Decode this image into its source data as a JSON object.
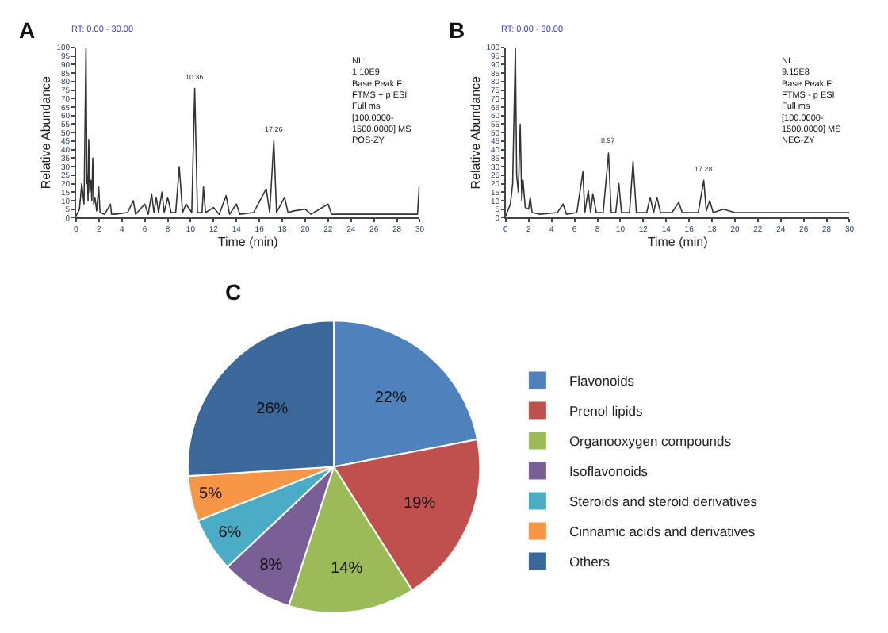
{
  "chart_data": [
    {
      "type": "line",
      "title": "A",
      "subtitle": "RT: 0.00 - 30.00",
      "xlabel": "Time (min)",
      "ylabel": "Relative Abundance",
      "x": [
        0,
        0.3,
        0.5,
        0.7,
        0.87,
        0.95,
        1.0,
        1.05,
        1.11,
        1.2,
        1.3,
        1.38,
        1.46,
        1.55,
        1.65,
        1.8,
        1.98,
        2.1,
        2.5,
        3.0,
        3.1,
        3.4,
        4.5,
        5.0,
        5.2,
        6.0,
        6.3,
        6.6,
        6.8,
        7.0,
        7.2,
        7.5,
        7.7,
        8.0,
        8.3,
        8.7,
        9.01,
        9.3,
        9.6,
        10.1,
        10.36,
        10.6,
        11.0,
        11.12,
        11.3,
        12.0,
        12.5,
        13.1,
        13.4,
        14.0,
        14.3,
        15.5,
        16.6,
        16.9,
        17.26,
        17.5,
        18.2,
        18.5,
        19.0,
        20.0,
        20.5,
        22.0,
        22.3,
        24.0,
        26.0,
        28.0,
        29.8,
        29.95
      ],
      "series": [
        {
          "color": "#333333",
          "values": [
            1,
            5,
            20,
            8,
            100,
            20,
            25,
            10,
            46,
            15,
            22,
            10,
            35,
            8,
            12,
            4,
            18,
            3,
            2,
            8,
            2,
            2,
            3,
            10,
            2,
            8,
            2,
            14,
            3,
            12,
            3,
            15,
            3,
            12,
            3,
            3,
            30,
            3,
            8,
            3,
            76,
            3,
            3,
            18,
            3,
            6,
            2,
            13,
            2,
            8,
            2,
            3,
            17,
            3,
            45,
            3,
            12,
            3,
            4,
            5,
            2,
            8,
            2,
            2,
            2,
            2,
            2,
            19
          ]
        }
      ],
      "xlim": [
        0,
        30
      ],
      "ylim": [
        0,
        100
      ],
      "xticks": [
        0,
        2,
        4,
        6,
        8,
        10,
        12,
        14,
        16,
        18,
        20,
        22,
        24,
        26,
        28,
        30
      ],
      "yticks": [
        0,
        5,
        10,
        15,
        20,
        25,
        30,
        35,
        40,
        45,
        50,
        55,
        60,
        65,
        70,
        75,
        80,
        85,
        90,
        95,
        100
      ],
      "annotations": [
        "NL:\n1.10E9\nBase Peak F:\nFTMS + p ESI\nFull ms\n[100.0000-\n1500.0000] MS\nPOS-ZY",
        {
          "text": "10.36",
          "x": 10.36,
          "y": 76
        },
        {
          "text": "17.26",
          "x": 17.26,
          "y": 45
        }
      ]
    },
    {
      "type": "line",
      "title": "B",
      "subtitle": "RT: 0.00 - 30.00",
      "xlabel": "Time (min)",
      "ylabel": "Relative Abundance",
      "x": [
        0,
        0.4,
        0.6,
        0.84,
        0.95,
        1.1,
        1.26,
        1.4,
        1.5,
        1.7,
        2.0,
        2.13,
        2.3,
        3.0,
        4.5,
        5.0,
        5.3,
        6.2,
        6.73,
        6.9,
        7.2,
        7.4,
        7.6,
        7.9,
        8.5,
        8.97,
        9.2,
        9.6,
        9.87,
        10.1,
        10.8,
        11.11,
        11.4,
        12.3,
        12.6,
        12.9,
        13.2,
        13.5,
        14.5,
        15.1,
        15.4,
        16.8,
        17.28,
        17.5,
        17.8,
        18.1,
        19.0,
        20.0,
        22.0,
        25.0,
        28.0,
        30.0
      ],
      "series": [
        {
          "color": "#333333",
          "values": [
            1,
            8,
            20,
            100,
            25,
            15,
            55,
            10,
            22,
            6,
            5,
            12,
            3,
            2,
            3,
            8,
            2,
            3,
            27,
            3,
            16,
            3,
            14,
            3,
            3,
            38,
            3,
            3,
            20,
            3,
            3,
            33,
            3,
            3,
            12,
            3,
            12,
            3,
            3,
            9,
            3,
            3,
            22,
            4,
            10,
            3,
            5,
            3,
            3,
            3,
            3,
            3
          ]
        }
      ],
      "xlim": [
        0,
        30
      ],
      "ylim": [
        0,
        100
      ],
      "xticks": [
        0,
        2,
        4,
        6,
        8,
        10,
        12,
        14,
        16,
        18,
        20,
        22,
        24,
        26,
        28,
        30
      ],
      "yticks": [
        0,
        5,
        10,
        15,
        20,
        25,
        30,
        35,
        40,
        45,
        50,
        55,
        60,
        65,
        70,
        75,
        80,
        85,
        90,
        95,
        100
      ],
      "annotations": [
        "NL:\n9.15E8\nBase Peak F:\nFTMS - p ESI\nFull ms\n[100.0000-\n1500.0000] MS\nNEG-ZY",
        {
          "text": "8.97",
          "x": 8.97,
          "y": 38
        },
        {
          "text": "17.28",
          "x": 17.28,
          "y": 22
        }
      ]
    },
    {
      "type": "pie",
      "title": "C",
      "categories": [
        "Flavonoids",
        "Prenol lipids",
        "Organooxygen compounds",
        "Isoflavonoids",
        "Steroids and steroid derivatives",
        "Cinnamic acids and derivatives",
        "Others"
      ],
      "values": [
        22,
        19,
        14,
        8,
        6,
        5,
        26
      ],
      "value_labels": [
        "22%",
        "19%",
        "14%",
        "8%",
        "6%",
        "5%",
        "26%"
      ],
      "colors": [
        "#4f81bd",
        "#c0504d",
        "#9bbb59",
        "#7a5f97",
        "#4bacc6",
        "#f79646",
        "#3c679b"
      ],
      "legend": "right"
    }
  ]
}
